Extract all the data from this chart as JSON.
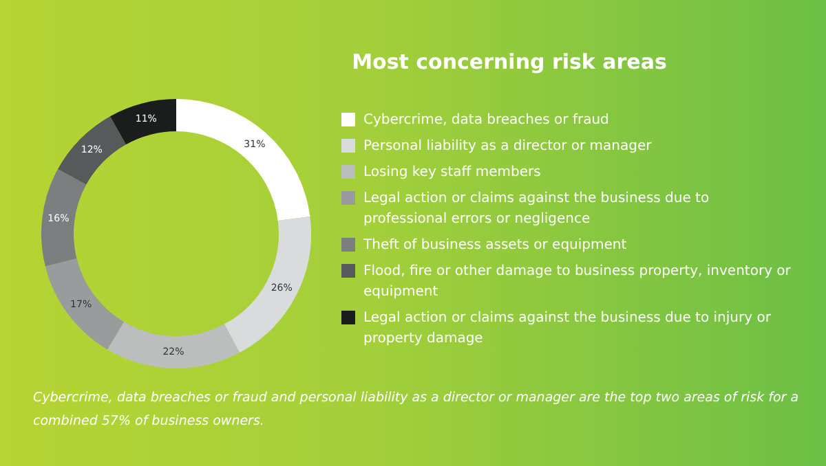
{
  "chart_data": {
    "type": "donut",
    "title": "Most concerning risk areas",
    "categories": [
      "Cybercrime, data breaches or fraud",
      "Personal liability as a director or manager",
      "Losing key staff members",
      "Legal action or claims against the business due to professional errors or negligence",
      "Theft of business assets or equipment",
      "Flood, fire or other damage to business property, inventory or equipment",
      "Legal action or claims against the business due to injury or property damage"
    ],
    "values": [
      31,
      26,
      22,
      17,
      16,
      12,
      11
    ],
    "value_labels": [
      "31%",
      "26%",
      "22%",
      "17%",
      "16%",
      "12%",
      "11%"
    ],
    "colors": [
      "#ffffff",
      "#d9dbdc",
      "#bcbdbd",
      "#9a9b9c",
      "#7d7e7f",
      "#58595a",
      "#1b1c1c"
    ],
    "legend": "right",
    "annotations": [
      "Cybercrime, data breaches or fraud and personal liability as a director or manager are the top two areas of risk for a combined 57% of business owners."
    ]
  }
}
